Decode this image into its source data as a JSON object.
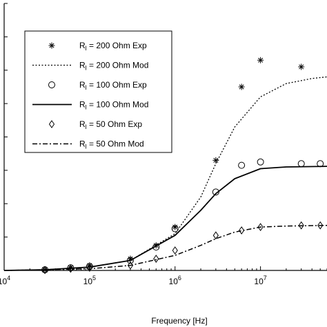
{
  "chart_data": {
    "type": "line",
    "xlabel": "Frequency [Hz]",
    "ylabel": "",
    "xscale": "log",
    "xlim": [
      10000,
      60000000
    ],
    "ylim": [
      0,
      8
    ],
    "x_tick_labels": [
      {
        "base": "10",
        "exp": "4",
        "value": 10000
      },
      {
        "base": "10",
        "exp": "5",
        "value": 100000
      },
      {
        "base": "10",
        "exp": "6",
        "value": 1000000
      },
      {
        "base": "10",
        "exp": "7",
        "value": 10000000
      }
    ],
    "grid": false,
    "legend_position": "upper-left",
    "series": [
      {
        "name_parts": [
          "R",
          "l",
          " = 200 Ohm Exp"
        ],
        "style": "asterisk",
        "points": [
          [
            30000,
            0.02
          ],
          [
            60000,
            0.08
          ],
          [
            100000,
            0.15
          ],
          [
            300000,
            0.35
          ],
          [
            600000,
            0.75
          ],
          [
            1000000,
            1.3
          ],
          [
            3000000,
            3.3
          ],
          [
            6000000,
            5.5
          ],
          [
            10000000,
            6.3
          ],
          [
            30000000,
            6.1
          ]
        ]
      },
      {
        "name_parts": [
          "R",
          "l",
          " = 200 Ohm Mod"
        ],
        "style": "dotted",
        "points": [
          [
            10000,
            0.0
          ],
          [
            30000,
            0.02
          ],
          [
            100000,
            0.1
          ],
          [
            300000,
            0.3
          ],
          [
            1000000,
            1.1
          ],
          [
            2000000,
            2.2
          ],
          [
            3000000,
            3.2
          ],
          [
            5000000,
            4.3
          ],
          [
            10000000,
            5.2
          ],
          [
            20000000,
            5.6
          ],
          [
            40000000,
            5.75
          ],
          [
            60000000,
            5.8
          ]
        ]
      },
      {
        "name_parts": [
          "R",
          "l",
          " = 100 Ohm Exp"
        ],
        "style": "circle",
        "points": [
          [
            30000,
            0.02
          ],
          [
            60000,
            0.08
          ],
          [
            100000,
            0.12
          ],
          [
            300000,
            0.3
          ],
          [
            600000,
            0.7
          ],
          [
            1000000,
            1.25
          ],
          [
            3000000,
            2.35
          ],
          [
            6000000,
            3.15
          ],
          [
            10000000,
            3.25
          ],
          [
            30000000,
            3.2
          ],
          [
            50000000,
            3.2
          ]
        ]
      },
      {
        "name_parts": [
          "R",
          "l",
          " = 100 Ohm Mod"
        ],
        "style": "solid",
        "points": [
          [
            10000,
            0.0
          ],
          [
            30000,
            0.02
          ],
          [
            100000,
            0.1
          ],
          [
            300000,
            0.3
          ],
          [
            1000000,
            1.05
          ],
          [
            2000000,
            1.8
          ],
          [
            3000000,
            2.3
          ],
          [
            5000000,
            2.75
          ],
          [
            10000000,
            3.05
          ],
          [
            20000000,
            3.1
          ],
          [
            60000000,
            3.12
          ]
        ]
      },
      {
        "name_parts": [
          "R",
          "l",
          " = 50 Ohm Exp"
        ],
        "style": "diamond",
        "points": [
          [
            30000,
            0.01
          ],
          [
            60000,
            0.05
          ],
          [
            100000,
            0.08
          ],
          [
            300000,
            0.15
          ],
          [
            600000,
            0.35
          ],
          [
            1000000,
            0.6
          ],
          [
            3000000,
            1.05
          ],
          [
            6000000,
            1.2
          ],
          [
            10000000,
            1.3
          ],
          [
            30000000,
            1.35
          ],
          [
            50000000,
            1.35
          ]
        ]
      },
      {
        "name_parts": [
          "R",
          "l",
          " = 50 Ohm Mod"
        ],
        "style": "dashdot",
        "points": [
          [
            10000,
            0.0
          ],
          [
            30000,
            0.02
          ],
          [
            100000,
            0.05
          ],
          [
            300000,
            0.15
          ],
          [
            1000000,
            0.45
          ],
          [
            2000000,
            0.75
          ],
          [
            3000000,
            0.95
          ],
          [
            5000000,
            1.15
          ],
          [
            10000000,
            1.3
          ],
          [
            20000000,
            1.33
          ],
          [
            60000000,
            1.35
          ]
        ]
      }
    ]
  }
}
